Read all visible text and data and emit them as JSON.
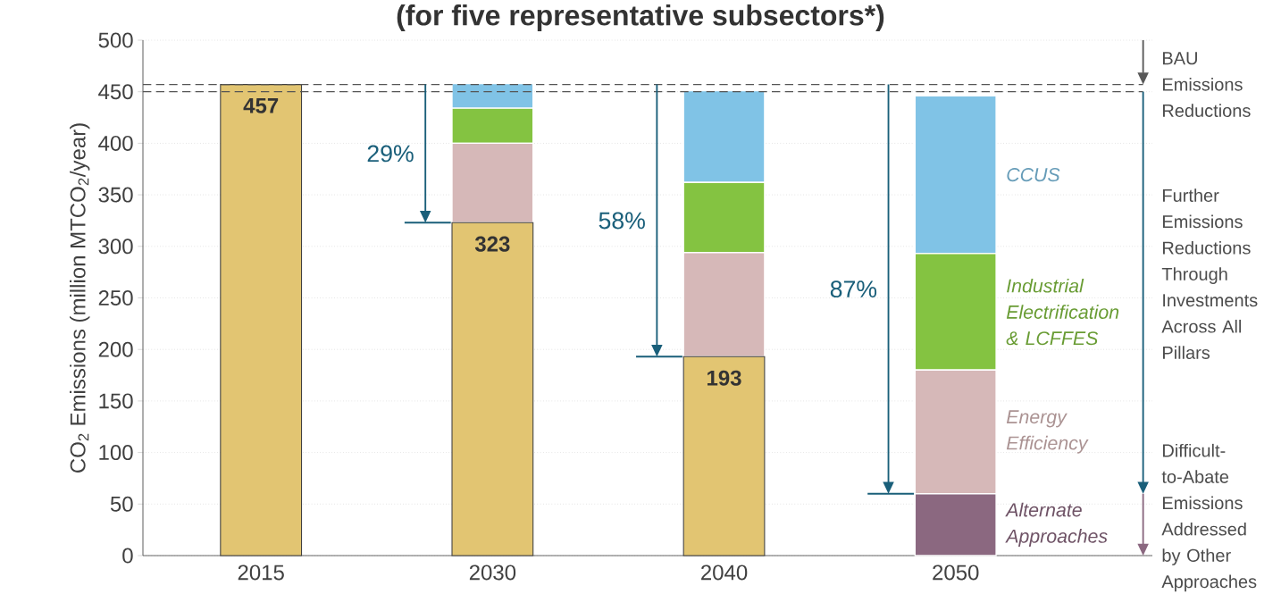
{
  "chart_data": {
    "type": "bar",
    "title": "(for five representative subsectors*)",
    "ylabel": "CO$_{2}$ Emissions (million MTCO$_{2}$/year)",
    "categories": [
      "2015",
      "2030",
      "2040",
      "2050"
    ],
    "stacked": true,
    "series": [
      {
        "color": "#e2c572",
        "values": [
          457,
          323,
          193,
          null
        ],
        "value_labels": [
          "457",
          "323",
          "193",
          null
        ]
      },
      {
        "name": "Alternate Approaches",
        "color": "#8b6880",
        "values": [
          null,
          null,
          null,
          60
        ]
      },
      {
        "name": "Energy Efficiency",
        "color": "#d6b8b8",
        "values": [
          null,
          77,
          101,
          120
        ]
      },
      {
        "name": "Industrial Electrification & LCFFES",
        "color": "#84c341",
        "values": [
          null,
          34,
          68,
          113
        ]
      },
      {
        "name": "CCUS",
        "color": "#80c3e6",
        "values": [
          null,
          24,
          89,
          153
        ]
      }
    ],
    "ylim": [
      0,
      500
    ],
    "yticks": [
      0,
      50,
      100,
      150,
      200,
      250,
      300,
      350,
      400,
      450,
      500
    ],
    "grid": "y",
    "ref_lines": [
      {
        "axis": "y",
        "value": 457,
        "color": "#555555",
        "line_style": "dashed"
      },
      {
        "axis": "y",
        "value": 450,
        "color": "#555555",
        "line_style": "dashed"
      }
    ],
    "annotations": [
      "29%",
      "58%",
      "87%",
      "BAU Emissions Reductions",
      "Further Emissions Reductions Through Investments Across All Pillars",
      "Difficult-to-Abate Emissions Addressed by Other Approaches"
    ]
  }
}
